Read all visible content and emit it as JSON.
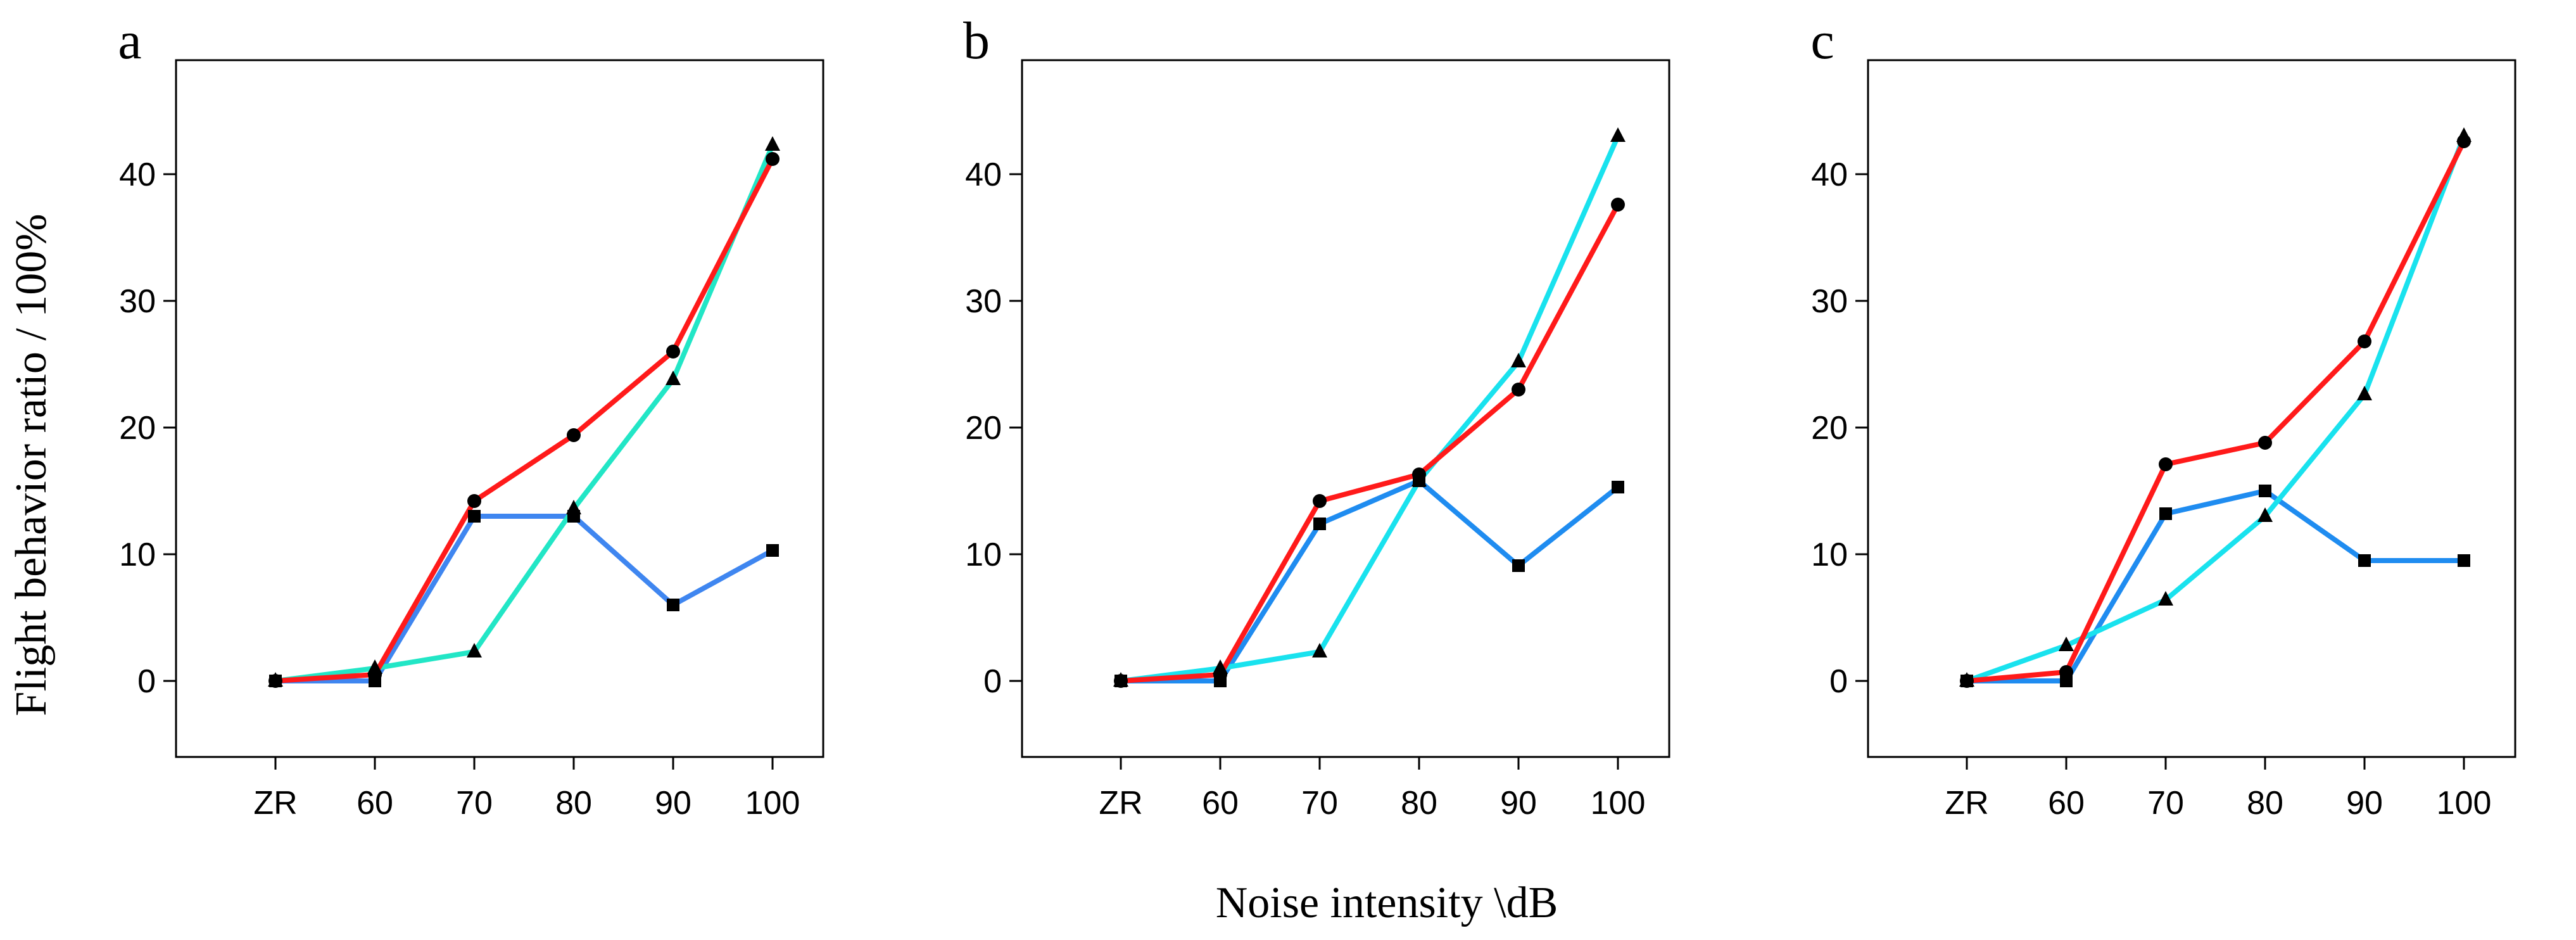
{
  "figure": {
    "ylabel": "Flight behavior ratio / 100%",
    "xlabel": "Noise intensity \\dB"
  },
  "chart_data": [
    {
      "panel": "a",
      "type": "line",
      "categories": [
        "ZR",
        "60",
        "70",
        "80",
        "90",
        "100"
      ],
      "ylim": [
        -6,
        49
      ],
      "yticks": [
        0,
        10,
        20,
        30,
        40
      ],
      "series": [
        {
          "name": "circle series",
          "color": "#ff1a1a",
          "marker": "circle",
          "values": [
            0,
            0.5,
            14.2,
            19.4,
            26.0,
            41.2
          ]
        },
        {
          "name": "triangle series",
          "color": "#22e6c6",
          "marker": "triangle",
          "values": [
            0,
            1.0,
            2.3,
            13.6,
            23.8,
            42.3
          ]
        },
        {
          "name": "square series",
          "color": "#3f86f0",
          "marker": "square",
          "values": [
            0,
            0,
            13.0,
            13.0,
            6.0,
            10.3
          ]
        }
      ]
    },
    {
      "panel": "b",
      "type": "line",
      "categories": [
        "ZR",
        "60",
        "70",
        "80",
        "90",
        "100"
      ],
      "ylim": [
        -6,
        49
      ],
      "yticks": [
        0,
        10,
        20,
        30,
        40
      ],
      "series": [
        {
          "name": "circle series",
          "color": "#ff1a1a",
          "marker": "circle",
          "values": [
            0,
            0.5,
            14.2,
            16.3,
            23.0,
            37.6
          ]
        },
        {
          "name": "triangle series",
          "color": "#19e2ee",
          "marker": "triangle",
          "values": [
            0,
            1.0,
            2.3,
            15.8,
            25.2,
            43.0
          ]
        },
        {
          "name": "square series",
          "color": "#1f8cf0",
          "marker": "square",
          "values": [
            0,
            0,
            12.4,
            15.8,
            9.1,
            15.3
          ]
        }
      ]
    },
    {
      "panel": "c",
      "type": "line",
      "categories": [
        "ZR",
        "60",
        "70",
        "80",
        "90",
        "100"
      ],
      "ylim": [
        -6,
        49
      ],
      "yticks": [
        0,
        10,
        20,
        30,
        40
      ],
      "series": [
        {
          "name": "circle series",
          "color": "#ff1a1a",
          "marker": "circle",
          "values": [
            0,
            0.7,
            17.1,
            18.8,
            26.8,
            42.6
          ]
        },
        {
          "name": "triangle series",
          "color": "#19e2ee",
          "marker": "triangle",
          "values": [
            0,
            2.8,
            6.4,
            13.0,
            22.6,
            43.0
          ]
        },
        {
          "name": "square series",
          "color": "#1f8cf0",
          "marker": "square",
          "values": [
            0,
            0,
            13.2,
            15.0,
            9.5,
            9.5
          ]
        }
      ]
    }
  ]
}
